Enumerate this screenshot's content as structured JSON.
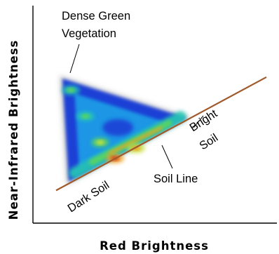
{
  "chart_data": {
    "type": "scatter",
    "title": "",
    "xlabel": "Red Brightness",
    "ylabel": "Near-Infrared Brightness",
    "xlim": [
      0,
      100
    ],
    "ylim": [
      0,
      100
    ],
    "grid": false,
    "legend": "none",
    "density_colormap": [
      "#b9b9b9",
      "#1f3fd6",
      "#1ba6e8",
      "#27c9b3",
      "#5fd65a",
      "#c9e23c",
      "#f0a020",
      "#d83a14"
    ],
    "soil_line": {
      "label": "Soil Line",
      "color": "#a05a2c",
      "x": [
        0,
        100
      ],
      "y": [
        9,
        87
      ]
    },
    "point_cloud": {
      "vertex_dense_vegetation": [
        3,
        86
      ],
      "vertex_dark_soil": [
        6,
        15
      ],
      "vertex_bright_soil": [
        62,
        59
      ],
      "density_peaks": [
        {
          "x": 21,
          "y": 42,
          "level": 0.7
        },
        {
          "x": 28,
          "y": 31,
          "level": 0.95
        },
        {
          "x": 38,
          "y": 38,
          "level": 0.9
        },
        {
          "x": 14,
          "y": 60,
          "level": 0.6
        },
        {
          "x": 7,
          "y": 78,
          "level": 0.55
        }
      ]
    },
    "annotations": [
      {
        "id": "dense_green_vegetation",
        "lines": [
          "Dense Green",
          "Vegetation"
        ]
      },
      {
        "id": "bright_soil",
        "lines": [
          "Bright",
          "Soil"
        ]
      },
      {
        "id": "soil_line",
        "lines": [
          "Soil Line"
        ]
      },
      {
        "id": "dark_soil",
        "lines": [
          "Dark Soil"
        ]
      }
    ]
  }
}
